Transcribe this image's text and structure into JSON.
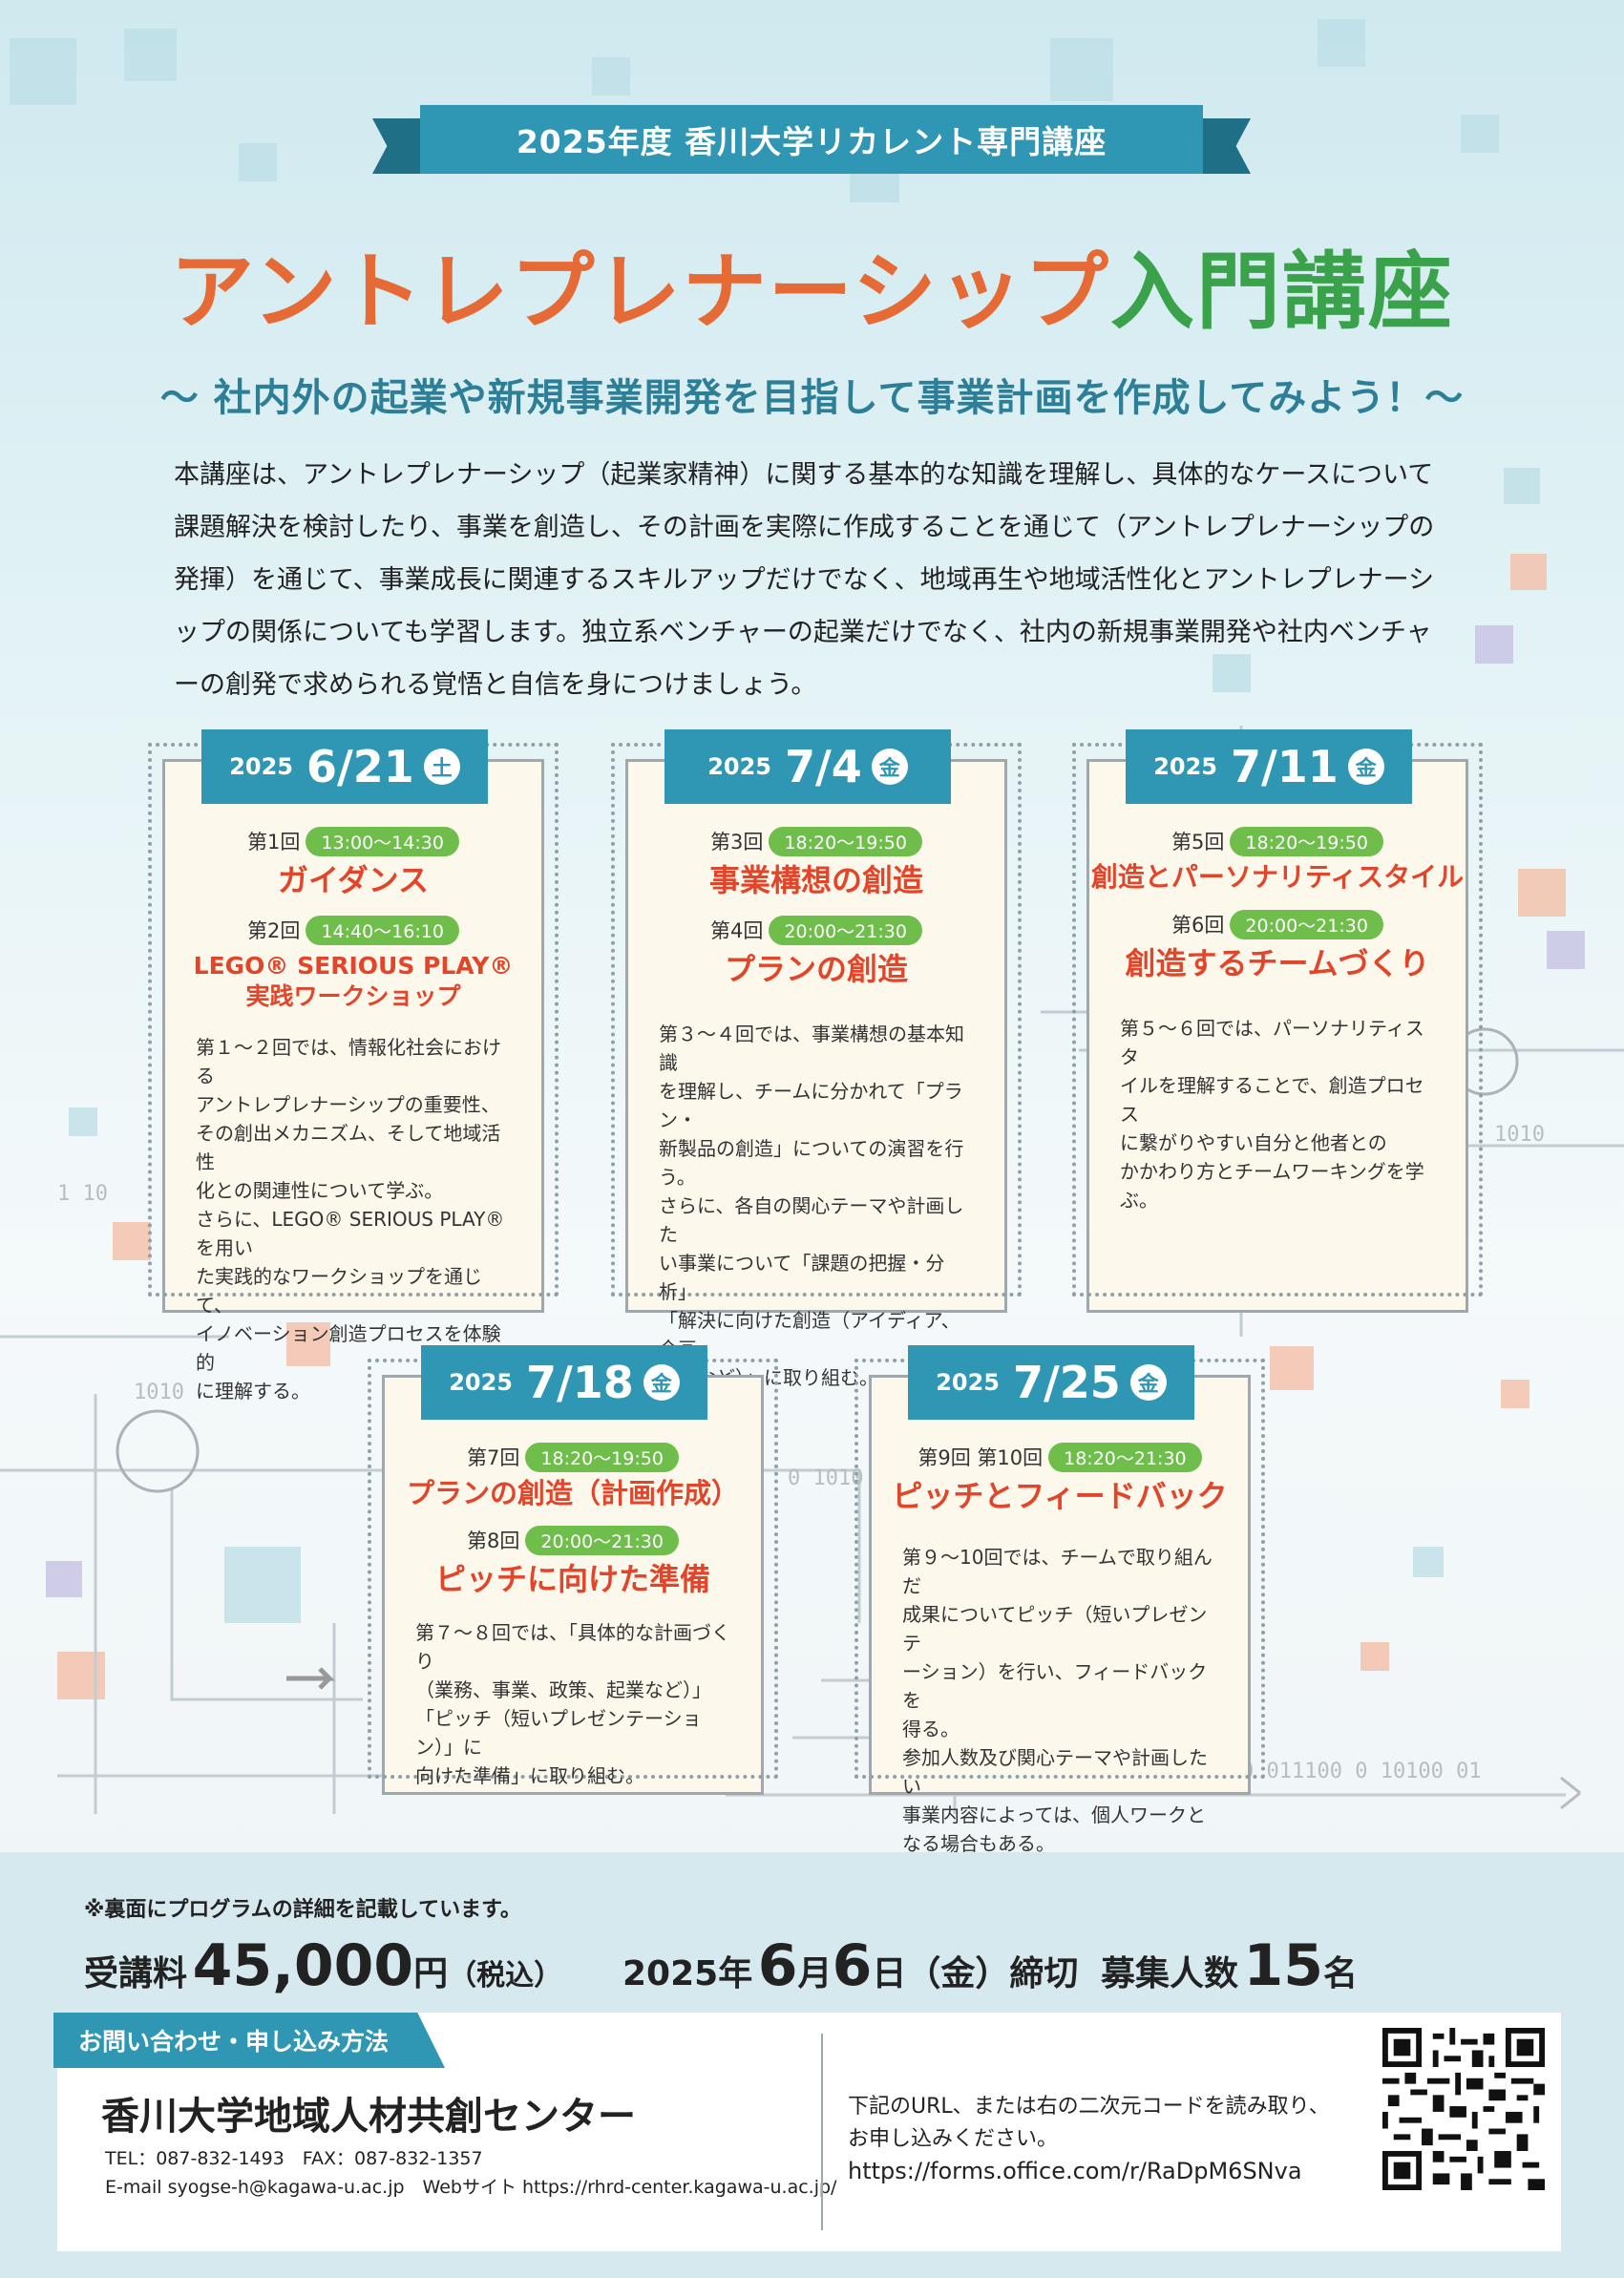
{
  "header": {
    "ribbon": "2025年度 香川大学リカレント専門講座",
    "title_orange": "アントレプレナーシップ",
    "title_green": "入門講座",
    "subtitle": "〜 社内外の起業や新規事業開発を目指して事業計画を作成してみよう！〜"
  },
  "intro": "本講座は、アントレプレナーシップ（起業家精神）に関する基本的な知識を理解し、具体的なケースについて課題解決を検討したり、事業を創造し、その計画を実際に作成することを通じて（アントレプレナーシップの発揮）を通じて、事業成長に関連するスキルアップだけでなく、地域再生や地域活性化とアントレプレナーシップの関係についても学習します。独立系ベンチャーの起業だけでなく、社内の新規事業開発や社内ベンチャーの創発で求められる覚悟と自信を身につけましょう。",
  "cards": [
    {
      "year": "2025",
      "date": "6/21",
      "weekday": "土",
      "s1_num": "第1回",
      "s1_time": "13:00〜14:30",
      "s1_name": "ガイダンス",
      "s2_num": "第2回",
      "s2_time": "14:40〜16:10",
      "s2_name": "LEGO® SERIOUS PLAY®\n実践ワークショップ",
      "desc": "第１〜２回では、情報化社会における\nアントレプレナーシップの重要性、\nその創出メカニズム、そして地域活性\n化との関連性について学ぶ。\nさらに、LEGO® SERIOUS PLAY® を用い\nた実践的なワークショップを通じて、\nイノベーション創造プロセスを体験的\nに理解する。"
    },
    {
      "year": "2025",
      "date": "7/4",
      "weekday": "金",
      "s1_num": "第3回",
      "s1_time": "18:20〜19:50",
      "s1_name": "事業構想の創造",
      "s2_num": "第4回",
      "s2_time": "20:00〜21:30",
      "s2_name": "プランの創造",
      "desc": "第３〜４回では、事業構想の基本知識\nを理解し、チームに分かれて「プラン・\n新製品の創造」についての演習を行う。\nさらに、各自の関心テーマや計画した\nい事業について「課題の把握・分析」\n「解決に向けた創造（アイディア、企画、\n提案など）」に取り組む。"
    },
    {
      "year": "2025",
      "date": "7/11",
      "weekday": "金",
      "s1_num": "第5回",
      "s1_time": "18:20〜19:50",
      "s1_name": "創造とパーソナリティスタイル",
      "s2_num": "第6回",
      "s2_time": "20:00〜21:30",
      "s2_name": "創造するチームづくり",
      "desc": "第５〜６回では、パーソナリティスタ\nイルを理解することで、創造プロセス\nに繋がりやすい自分と他者との\nかかわり方とチームワーキングを学ぶ。"
    },
    {
      "year": "2025",
      "date": "7/18",
      "weekday": "金",
      "s1_num": "第7回",
      "s1_time": "18:20〜19:50",
      "s1_name": "プランの創造（計画作成）",
      "s2_num": "第8回",
      "s2_time": "20:00〜21:30",
      "s2_name": "ピッチに向けた準備",
      "desc": "第７〜８回では、「具体的な計画づくり\n（業務、事業、政策、起業など）」\n「ピッチ（短いプレゼンテーション）」に\n向けた準備」に取り組む。"
    },
    {
      "year": "2025",
      "date": "7/25",
      "weekday": "金",
      "s1_num": "第9回 第10回",
      "s1_time": "18:20〜21:30",
      "s1_name": "ピッチとフィードバック",
      "desc": "第９〜10回では、チームで取り組んだ\n成果についてピッチ（短いプレゼンテ\nーション）を行い、フィードバックを\n得る。\n参加人数及び関心テーマや計画したい\n事業内容によっては、個人ワークと\nなる場合もある。"
    }
  ],
  "footer": {
    "note": "※裏面にプログラムの詳細を記載しています。",
    "fee_label": "受講料",
    "fee_value": "45,000",
    "fee_unit": "円",
    "fee_tax": "（税込）",
    "dl_year": "2025",
    "dl_nen": "年",
    "dl_month": "6",
    "dl_gatsu": "月",
    "dl_day": "6",
    "dl_nichi": "日",
    "dl_wd": "（金）",
    "dl_shime": "締切",
    "cap_label": "募集人数",
    "cap_value": "15",
    "cap_unit": "名",
    "contact_label": "お問い合わせ・申し込み方法",
    "org": "香川大学地域人材共創センター",
    "tel": "TEL：087-832-1493　FAX：087-832-1357",
    "email": "E-mail  syogse-h@kagawa-u.ac.jp　Webサイト  https://rhrd-center.kagawa-u.ac.jp/",
    "apply_text1": "下記のURL、または右の二次元コードを読み取り、",
    "apply_text2": "お申し込みください。",
    "url": "https://forms.office.com/r/RaDpM6SNva"
  },
  "colors": {
    "accent_teal": "#2f97b3",
    "title_orange": "#e66a35",
    "title_green": "#3aa24a",
    "session_red": "#e2452a",
    "time_green": "#6fbd4a"
  }
}
